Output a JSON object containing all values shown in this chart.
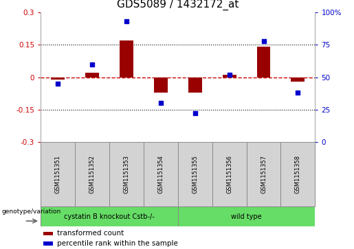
{
  "title": "GDS5089 / 1432172_at",
  "samples": [
    "GSM1151351",
    "GSM1151352",
    "GSM1151353",
    "GSM1151354",
    "GSM1151355",
    "GSM1151356",
    "GSM1151357",
    "GSM1151358"
  ],
  "red_values": [
    -0.01,
    0.02,
    0.17,
    -0.07,
    -0.07,
    0.01,
    0.14,
    -0.02
  ],
  "blue_values": [
    45,
    60,
    93,
    30,
    22,
    52,
    78,
    38
  ],
  "ylim_left": [
    -0.3,
    0.3
  ],
  "ylim_right": [
    0,
    100
  ],
  "yticks_left": [
    -0.3,
    -0.15,
    0,
    0.15,
    0.3
  ],
  "yticks_right": [
    0,
    25,
    50,
    75,
    100
  ],
  "ytick_labels_left": [
    "-0.3",
    "-0.15",
    "0",
    "0.15",
    "0.3"
  ],
  "ytick_labels_right": [
    "0",
    "25",
    "50",
    "75",
    "100%"
  ],
  "hlines": [
    0.15,
    -0.15
  ],
  "hline_zero_color": "#cc0000",
  "hline_dotted_color": "#000000",
  "bar_color": "#990000",
  "dot_color": "#0000cc",
  "bar_width": 0.4,
  "group1_label": "cystatin B knockout Cstb-/-",
  "group2_label": "wild type",
  "group1_indices": [
    0,
    1,
    2,
    3
  ],
  "group2_indices": [
    4,
    5,
    6,
    7
  ],
  "group_color": "#66dd66",
  "genotype_label": "genotype/variation",
  "legend_red": "transformed count",
  "legend_blue": "percentile rank within the sample",
  "plot_bg_color": "#ffffff",
  "tick_color_left": "#cc0000",
  "tick_color_right": "#0000cc",
  "title_fontsize": 11,
  "tick_fontsize": 7.5,
  "label_fontsize": 7.5
}
